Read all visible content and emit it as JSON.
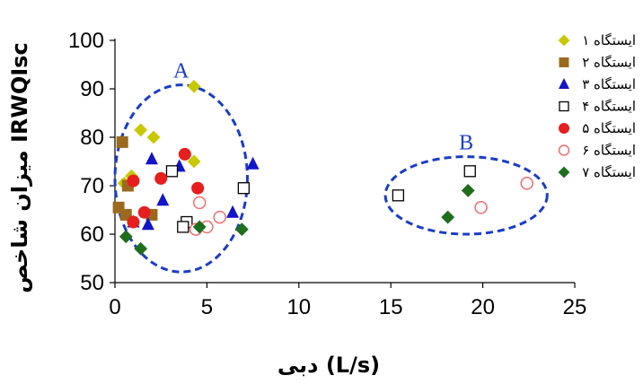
{
  "chart_data": {
    "type": "scatter",
    "xlabel": "دبی (L/s)",
    "ylabel": "میزان شاخص IRWQIsc",
    "xlim": [
      0,
      25
    ],
    "ylim": [
      50,
      100
    ],
    "x_ticks": [
      "0",
      "5",
      "10",
      "15",
      "20",
      "25"
    ],
    "y_ticks": [
      "50",
      "60",
      "70",
      "80",
      "90",
      "100"
    ],
    "grid": false,
    "legend_position": "right",
    "series": [
      {
        "name": "ایستگاه ۱",
        "color": "#c8c800",
        "marker": "diamond-filled",
        "points": [
          [
            1.4,
            81.5
          ],
          [
            2.1,
            80.0
          ],
          [
            0.5,
            70.5
          ],
          [
            0.9,
            72.0
          ],
          [
            4.3,
            90.5
          ],
          [
            4.3,
            75.0
          ]
        ]
      },
      {
        "name": "ایستگاه ۲",
        "color": "#9b6a1f",
        "marker": "square-filled",
        "points": [
          [
            0.4,
            79.0
          ],
          [
            0.2,
            65.5
          ],
          [
            0.6,
            64.0
          ],
          [
            2.0,
            64.0
          ],
          [
            0.7,
            70.0
          ]
        ]
      },
      {
        "name": "ایستگاه ۳",
        "color": "#1414c8",
        "marker": "triangle-filled",
        "points": [
          [
            2.0,
            75.5
          ],
          [
            1.8,
            62.0
          ],
          [
            1.0,
            62.5
          ],
          [
            2.6,
            67.0
          ],
          [
            3.5,
            74.0
          ],
          [
            6.4,
            64.5
          ],
          [
            7.5,
            74.5
          ]
        ]
      },
      {
        "name": "ایستگاه ۴",
        "color": "#000000",
        "marker": "square-open",
        "points": [
          [
            3.1,
            73.0
          ],
          [
            3.9,
            62.5
          ],
          [
            3.7,
            61.5
          ],
          [
            7.0,
            69.5
          ],
          [
            15.4,
            68.0
          ],
          [
            19.3,
            73.0
          ]
        ]
      },
      {
        "name": "ایستگاه ۵",
        "color": "#e61e1e",
        "marker": "circle-filled",
        "points": [
          [
            1.0,
            71.0
          ],
          [
            2.5,
            71.5
          ],
          [
            3.8,
            76.5
          ],
          [
            4.5,
            69.5
          ],
          [
            1.6,
            64.5
          ],
          [
            1.0,
            62.5
          ]
        ]
      },
      {
        "name": "ایستگاه ۶",
        "color": "#ee6e6e",
        "marker": "circle-open",
        "points": [
          [
            4.6,
            66.5
          ],
          [
            5.0,
            61.5
          ],
          [
            5.7,
            63.5
          ],
          [
            4.4,
            61.0
          ],
          [
            19.9,
            65.5
          ],
          [
            22.4,
            70.5
          ]
        ]
      },
      {
        "name": "ایستگاه ۷",
        "color": "#1e6e1e",
        "marker": "diamond-filled",
        "points": [
          [
            0.6,
            59.5
          ],
          [
            1.4,
            57.0
          ],
          [
            4.6,
            61.5
          ],
          [
            6.9,
            61.0
          ],
          [
            18.1,
            63.5
          ],
          [
            19.2,
            69.0
          ]
        ]
      }
    ],
    "annotations": [
      {
        "label": "A",
        "center": [
          3.6,
          71.5
        ],
        "rx": 3.6,
        "ry": 19.3,
        "style": "dashed-ellipse",
        "color": "#1a3cc8"
      },
      {
        "label": "B",
        "center": [
          19.1,
          68.0
        ],
        "rx": 4.4,
        "ry": 8.0,
        "style": "dashed-ellipse",
        "color": "#1a3cc8"
      }
    ]
  }
}
